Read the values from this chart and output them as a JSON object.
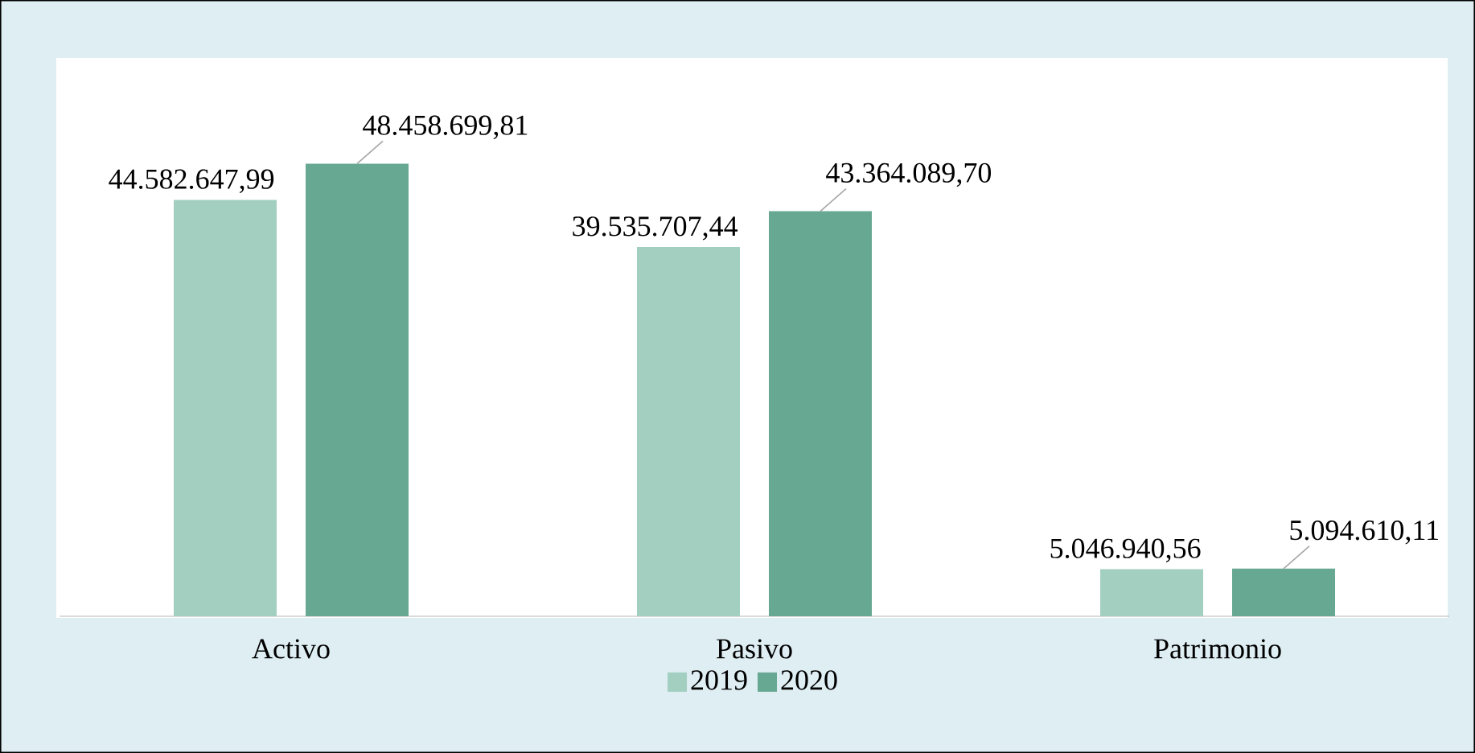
{
  "chart_data": {
    "type": "bar",
    "categories": [
      "Activo",
      "Pasivo",
      "Patrimonio"
    ],
    "series": [
      {
        "name": "2019",
        "color": "#a3cfc0",
        "values": [
          44582647.99,
          39535707.44,
          5046940.56
        ],
        "value_labels": [
          "44.582.647,99",
          "39.535.707,44",
          "5.046.940,56"
        ]
      },
      {
        "name": "2020",
        "color": "#67a893",
        "values": [
          48458699.81,
          43364089.7,
          5094610.11
        ],
        "value_labels": [
          "48.458.699,81",
          "43.364.089,70",
          "5.094.610,11"
        ]
      }
    ],
    "legend": "bottom"
  }
}
